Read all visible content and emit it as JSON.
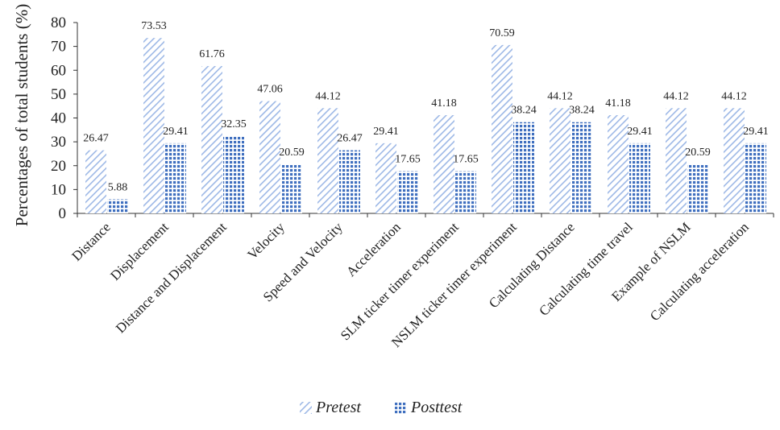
{
  "chart_data": {
    "type": "bar",
    "title": "",
    "xlabel": "",
    "ylabel": "Percentages of total students (%)",
    "ylim": [
      0,
      80
    ],
    "yticks": [
      0,
      10,
      20,
      30,
      40,
      50,
      60,
      70,
      80
    ],
    "grid": false,
    "legend_position": "bottom",
    "categories": [
      "Distance",
      "Displacement",
      "Distance and Displacement",
      "Velocity",
      "Speed and Velocity",
      "Acceleration",
      "SLM ticker timer experiment",
      "NSLM ticker timer experiment",
      "Calculating Distance",
      "Calculating time travel",
      "Example of NSLM",
      "Calculating acceleration"
    ],
    "series": [
      {
        "name": "Pretest",
        "values": [
          26.47,
          73.53,
          61.76,
          47.06,
          44.12,
          29.41,
          41.18,
          70.59,
          44.12,
          41.18,
          44.12,
          44.12
        ],
        "labels": [
          "26.47",
          "73.53",
          "61.76",
          "47.06",
          "44.12",
          "29.41",
          "41.18",
          "70.59",
          "44.12",
          "41.18",
          "44.12",
          "44.12"
        ],
        "color": "#9db8e6",
        "pattern": "diagonal-stripes"
      },
      {
        "name": "Posttest",
        "values": [
          5.88,
          29.41,
          32.35,
          20.59,
          26.47,
          17.65,
          17.65,
          38.24,
          38.24,
          29.41,
          20.59,
          29.41
        ],
        "labels": [
          "5.88",
          "29.41",
          "32.35",
          "20.59",
          "26.47",
          "17.65",
          "17.65",
          "38.24",
          "38.24",
          "29.41",
          "20.59",
          "29.41"
        ],
        "color": "#3f6fbf",
        "pattern": "crosshatch"
      }
    ]
  }
}
